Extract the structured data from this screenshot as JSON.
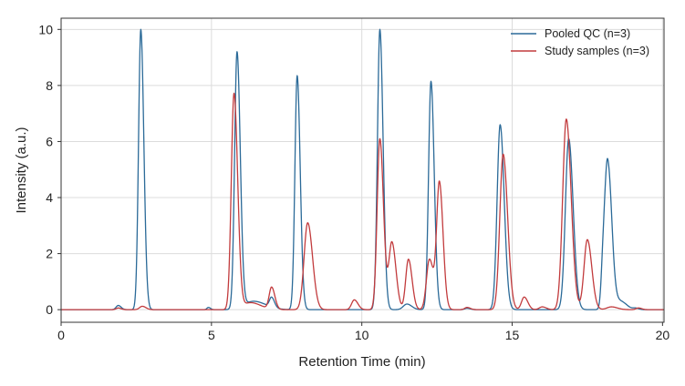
{
  "chart_data": {
    "type": "line",
    "title": "",
    "xlabel": "Retention Time (min)",
    "ylabel": "Intensity (a.u.)",
    "xlim": [
      0,
      20.05
    ],
    "ylim": [
      -0.45,
      10.4
    ],
    "xticks": [
      0,
      5,
      10,
      15,
      20
    ],
    "yticks": [
      0,
      2,
      4,
      6,
      8,
      10
    ],
    "grid": true,
    "legend_position": "top-right",
    "series": [
      {
        "name": "Pooled QC (n=3)",
        "color": "#2b6a98",
        "peaks": [
          {
            "rt": 1.9,
            "height": 0.15,
            "sigma": 0.07
          },
          {
            "rt": 2.65,
            "height": 10.0,
            "sigma": 0.075
          },
          {
            "rt": 4.9,
            "height": 0.08,
            "sigma": 0.05
          },
          {
            "rt": 5.85,
            "height": 9.15,
            "sigma": 0.08
          },
          {
            "rt": 6.4,
            "height": 0.3,
            "sigma": 0.3
          },
          {
            "rt": 7.0,
            "height": 0.35,
            "sigma": 0.07
          },
          {
            "rt": 7.85,
            "height": 8.35,
            "sigma": 0.075
          },
          {
            "rt": 10.6,
            "height": 10.0,
            "sigma": 0.08
          },
          {
            "rt": 11.5,
            "height": 0.2,
            "sigma": 0.12
          },
          {
            "rt": 12.3,
            "height": 8.15,
            "sigma": 0.08
          },
          {
            "rt": 13.5,
            "height": 0.05,
            "sigma": 0.08
          },
          {
            "rt": 14.6,
            "height": 6.6,
            "sigma": 0.1
          },
          {
            "rt": 16.88,
            "height": 6.1,
            "sigma": 0.11
          },
          {
            "rt": 18.02,
            "height": 1.2,
            "sigma": 0.06
          },
          {
            "rt": 18.18,
            "height": 5.2,
            "sigma": 0.1
          },
          {
            "rt": 18.6,
            "height": 0.3,
            "sigma": 0.15
          },
          {
            "rt": 19.1,
            "height": 0.05,
            "sigma": 0.08
          }
        ]
      },
      {
        "name": "Study samples (n=3)",
        "color": "#c23b3d",
        "peaks": [
          {
            "rt": 1.9,
            "height": 0.06,
            "sigma": 0.07
          },
          {
            "rt": 2.7,
            "height": 0.12,
            "sigma": 0.09
          },
          {
            "rt": 5.75,
            "height": 7.7,
            "sigma": 0.09
          },
          {
            "rt": 6.3,
            "height": 0.25,
            "sigma": 0.25
          },
          {
            "rt": 7.0,
            "height": 0.78,
            "sigma": 0.08
          },
          {
            "rt": 8.2,
            "height": 3.1,
            "sigma": 0.12
          },
          {
            "rt": 9.75,
            "height": 0.35,
            "sigma": 0.09
          },
          {
            "rt": 10.6,
            "height": 6.1,
            "sigma": 0.09
          },
          {
            "rt": 11.0,
            "height": 2.4,
            "sigma": 0.1
          },
          {
            "rt": 11.55,
            "height": 1.8,
            "sigma": 0.09
          },
          {
            "rt": 12.25,
            "height": 1.8,
            "sigma": 0.1
          },
          {
            "rt": 12.58,
            "height": 4.5,
            "sigma": 0.09
          },
          {
            "rt": 13.5,
            "height": 0.08,
            "sigma": 0.08
          },
          {
            "rt": 14.7,
            "height": 5.55,
            "sigma": 0.11
          },
          {
            "rt": 15.4,
            "height": 0.45,
            "sigma": 0.09
          },
          {
            "rt": 16.0,
            "height": 0.1,
            "sigma": 0.1
          },
          {
            "rt": 16.8,
            "height": 6.8,
            "sigma": 0.12
          },
          {
            "rt": 17.5,
            "height": 2.5,
            "sigma": 0.11
          },
          {
            "rt": 18.3,
            "height": 0.1,
            "sigma": 0.15
          },
          {
            "rt": 19.2,
            "height": 0.06,
            "sigma": 0.08
          }
        ]
      }
    ]
  }
}
